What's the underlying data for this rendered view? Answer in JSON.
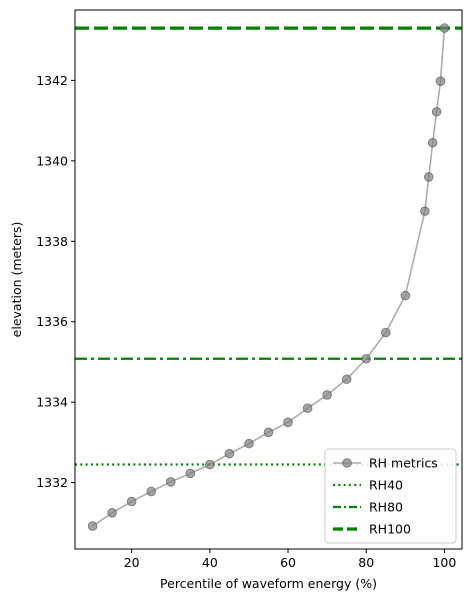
{
  "chart_data": {
    "type": "line",
    "xlabel": "Percentile of waveform energy (%)",
    "ylabel": "elevation (meters)",
    "xlim": [
      5.5,
      104.5
    ],
    "ylim": [
      1330.35,
      1343.75
    ],
    "xticks": [
      20,
      40,
      60,
      80,
      100
    ],
    "yticks": [
      1332,
      1334,
      1336,
      1338,
      1340,
      1342
    ],
    "grid": false,
    "legend_position": "lower right",
    "series": [
      {
        "name": "RH metrics",
        "style": "line-markers",
        "color": "#808080",
        "x": [
          10,
          15,
          20,
          25,
          30,
          35,
          40,
          45,
          50,
          55,
          60,
          65,
          70,
          75,
          80,
          85,
          90,
          95,
          96,
          97,
          98,
          99,
          100
        ],
        "y": [
          1330.92,
          1331.25,
          1331.53,
          1331.78,
          1332.02,
          1332.23,
          1332.45,
          1332.72,
          1332.97,
          1333.25,
          1333.5,
          1333.85,
          1334.18,
          1334.57,
          1335.08,
          1335.73,
          1336.65,
          1338.75,
          1339.6,
          1340.45,
          1341.22,
          1341.98,
          1343.3
        ]
      }
    ],
    "hlines": [
      {
        "name": "RH40",
        "y": 1332.45,
        "color": "#008000",
        "style": "dotted"
      },
      {
        "name": "RH80",
        "y": 1335.08,
        "color": "#008000",
        "style": "dashdot"
      },
      {
        "name": "RH100",
        "y": 1343.3,
        "color": "#008000",
        "style": "dashed"
      }
    ]
  }
}
